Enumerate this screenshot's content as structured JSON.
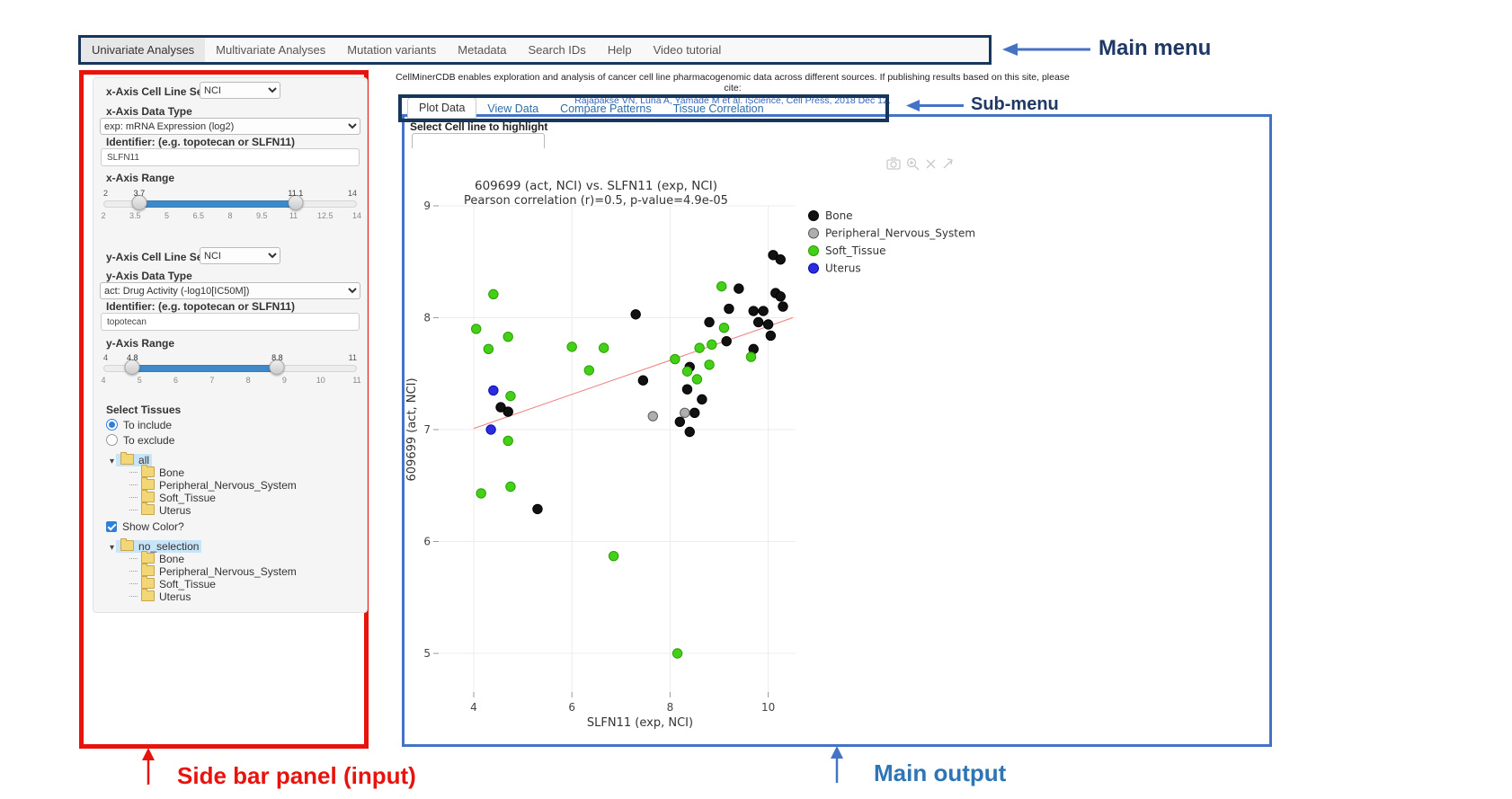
{
  "main_menu": {
    "items": [
      {
        "label": "Univariate Analyses",
        "active": true
      },
      {
        "label": "Multivariate Analyses",
        "active": false
      },
      {
        "label": "Mutation variants",
        "active": false
      },
      {
        "label": "Metadata",
        "active": false
      },
      {
        "label": "Search IDs",
        "active": false
      },
      {
        "label": "Help",
        "active": false
      },
      {
        "label": "Video tutorial",
        "active": false
      }
    ]
  },
  "citation": {
    "line1": "CellMinerCDB enables exploration and analysis of cancer cell line pharmacogenomic data across different sources. If publishing results based on this site, please cite:",
    "line2": "Rajapakse VN, Luna A, Yamade M et al. iScience, Cell Press, 2018 Dec 12."
  },
  "tabs": [
    {
      "label": "Plot Data",
      "active": true
    },
    {
      "label": "View Data",
      "active": false
    },
    {
      "label": "Compare Patterns",
      "active": false
    },
    {
      "label": "Tissue Correlation",
      "active": false
    }
  ],
  "highlight": {
    "label": "Select Cell line to highlight",
    "value": ""
  },
  "sidebar": {
    "x_axis": {
      "cell_line_set_label": "x-Axis Cell Line Set",
      "cell_line_set_value": "NCI",
      "data_type_label": "x-Axis Data Type",
      "data_type_value": "exp: mRNA Expression (log2)",
      "identifier_label": "Identifier: (e.g. topotecan or SLFN11)",
      "identifier_value": "SLFN11",
      "range_label": "x-Axis Range",
      "range": {
        "min": 2,
        "max": 14,
        "low": 3.7,
        "high": 11.1,
        "ticks": [
          2,
          3.5,
          5,
          6.5,
          8,
          9.5,
          11,
          12.5,
          14
        ]
      }
    },
    "y_axis": {
      "cell_line_set_label": "y-Axis Cell Line Set",
      "cell_line_set_value": "NCI",
      "data_type_label": "y-Axis Data Type",
      "data_type_value": "act: Drug Activity (-log10[IC50M])",
      "identifier_label": "Identifier: (e.g. topotecan or SLFN11)",
      "identifier_value": "topotecan",
      "range_label": "y-Axis Range",
      "range": {
        "min": 4,
        "max": 11,
        "low": 4.8,
        "high": 8.8,
        "ticks": [
          4,
          5,
          6,
          7,
          8,
          9,
          10,
          11
        ]
      }
    },
    "select_tissues_label": "Select Tissues",
    "radio_options": [
      {
        "label": "To include",
        "selected": true
      },
      {
        "label": "To exclude",
        "selected": false
      }
    ],
    "include_tree": {
      "root": "all",
      "children": [
        "Bone",
        "Peripheral_Nervous_System",
        "Soft_Tissue",
        "Uterus"
      ]
    },
    "show_color_label": "Show Color?",
    "show_color_checked": true,
    "color_tree": {
      "root": "no_selection",
      "children": [
        "Bone",
        "Peripheral_Nervous_System",
        "Soft_Tissue",
        "Uterus"
      ]
    }
  },
  "annotations": {
    "main_menu": "Main menu",
    "sub_menu": "Sub-menu",
    "sidebar": "Side bar panel (input)",
    "main_output": "Main output"
  },
  "chart_data": {
    "type": "scatter",
    "title": "609699 (act, NCI) vs. SLFN11 (exp, NCI)",
    "subtitle": "Pearson correlation (r)=0.5, p-value=4.9e-05",
    "xlabel": "SLFN11 (exp, NCI)",
    "ylabel": "609699 (act, NCI)",
    "xlim": [
      3.3,
      10.8
    ],
    "ylim": [
      4.55,
      9.0
    ],
    "xticks": [
      4,
      6,
      8,
      10
    ],
    "yticks": [
      5,
      6,
      7,
      8,
      9
    ],
    "grid": true,
    "legend_position": "right",
    "modebar_icons": [
      "camera-icon",
      "zoom-in-icon",
      "close-icon",
      "arrow-icon"
    ],
    "trendline": {
      "color": "#f07c7c",
      "x1": 4.0,
      "y1": 7.01,
      "x2": 10.5,
      "y2": 8.0
    },
    "series": [
      {
        "name": "Bone",
        "color": "#111111",
        "stroke": "#000000",
        "points": [
          [
            10.1,
            8.56
          ],
          [
            10.25,
            8.52
          ],
          [
            9.4,
            8.26
          ],
          [
            10.15,
            8.22
          ],
          [
            10.25,
            8.19
          ],
          [
            10.3,
            8.1
          ],
          [
            9.2,
            8.08
          ],
          [
            9.7,
            8.06
          ],
          [
            9.9,
            8.06
          ],
          [
            7.3,
            8.03
          ],
          [
            8.8,
            7.96
          ],
          [
            9.8,
            7.96
          ],
          [
            10.0,
            7.94
          ],
          [
            10.05,
            7.84
          ],
          [
            9.15,
            7.79
          ],
          [
            9.7,
            7.72
          ],
          [
            8.4,
            7.56
          ],
          [
            7.45,
            7.44
          ],
          [
            8.35,
            7.36
          ],
          [
            8.65,
            7.27
          ],
          [
            4.55,
            7.2
          ],
          [
            4.7,
            7.16
          ],
          [
            8.5,
            7.15
          ],
          [
            8.2,
            7.07
          ],
          [
            8.4,
            6.98
          ],
          [
            5.3,
            6.29
          ]
        ]
      },
      {
        "name": "Peripheral_Nervous_System",
        "color": "#aeaeae",
        "stroke": "#5a5a5a",
        "points": [
          [
            7.65,
            7.12
          ],
          [
            8.3,
            7.15
          ]
        ]
      },
      {
        "name": "Soft_Tissue",
        "color": "#43d118",
        "stroke": "#2a9e00",
        "points": [
          [
            4.4,
            8.21
          ],
          [
            9.05,
            8.28
          ],
          [
            9.1,
            7.91
          ],
          [
            4.05,
            7.9
          ],
          [
            4.7,
            7.83
          ],
          [
            4.3,
            7.72
          ],
          [
            6.0,
            7.74
          ],
          [
            6.65,
            7.73
          ],
          [
            9.65,
            7.65
          ],
          [
            8.1,
            7.63
          ],
          [
            8.6,
            7.73
          ],
          [
            8.85,
            7.76
          ],
          [
            8.35,
            7.52
          ],
          [
            8.8,
            7.58
          ],
          [
            6.35,
            7.53
          ],
          [
            8.55,
            7.45
          ],
          [
            4.75,
            7.3
          ],
          [
            4.7,
            6.9
          ],
          [
            4.15,
            6.43
          ],
          [
            4.75,
            6.49
          ],
          [
            6.85,
            5.87
          ],
          [
            8.15,
            5.0
          ]
        ]
      },
      {
        "name": "Uterus",
        "color": "#2b2bdf",
        "stroke": "#0f0fae",
        "points": [
          [
            4.4,
            7.35
          ],
          [
            4.35,
            7.0
          ]
        ]
      }
    ]
  }
}
